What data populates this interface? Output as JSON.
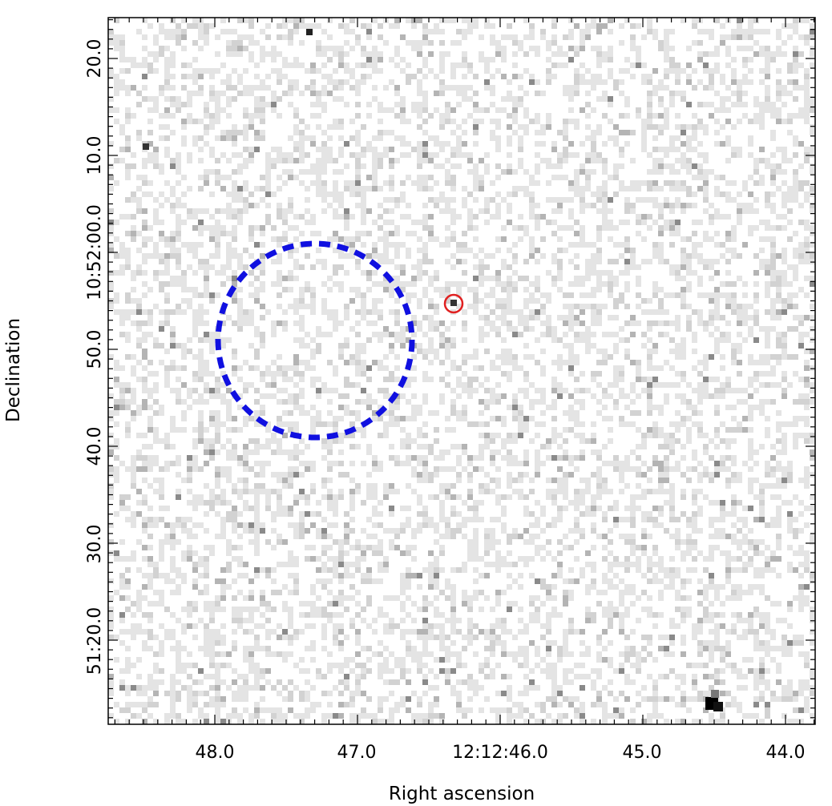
{
  "chart_data": {
    "type": "image",
    "xlabel": "Right ascension",
    "ylabel": "Declination",
    "x_ticks": [
      "48.0",
      "47.0",
      "12:12:46.0",
      "45.0",
      "44.0"
    ],
    "y_ticks": [
      "20.0",
      "10.0",
      "10:52:00.0",
      "50.0",
      "40.0",
      "30.0",
      "51:20.0"
    ],
    "colormap": "grayscale",
    "overlays": [
      {
        "shape": "circle",
        "style": "dashed",
        "color": "#1010e0",
        "name": ""
      },
      {
        "shape": "circle",
        "style": "solid",
        "color": "#e02020",
        "name": ""
      }
    ]
  }
}
